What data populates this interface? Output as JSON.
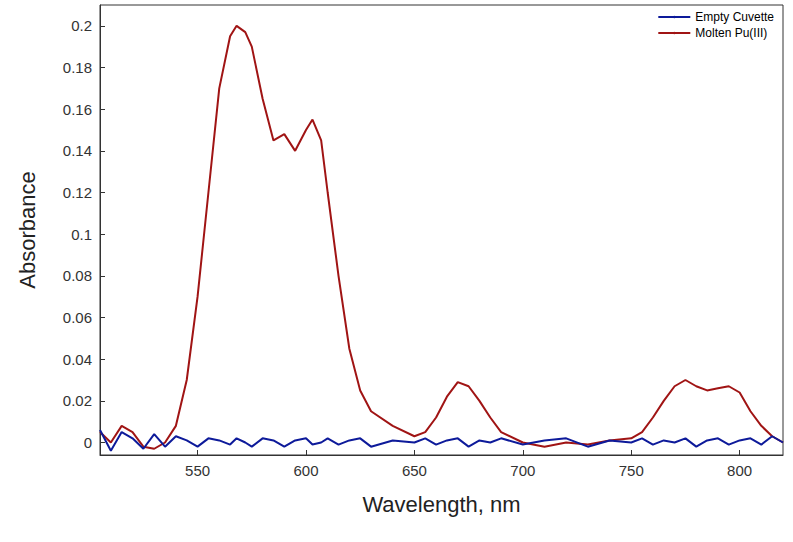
{
  "chart_data": {
    "type": "line",
    "x_label": "Wavelength, nm",
    "y_label": "Absorbance",
    "xlim": [
      505,
      820
    ],
    "xticks": [
      550,
      600,
      650,
      700,
      750,
      800
    ],
    "ylim": [
      -0.006,
      0.21
    ],
    "yticks": [
      0,
      0.02,
      0.04,
      0.06,
      0.08,
      0.1,
      0.12,
      0.14,
      0.16,
      0.18,
      0.2
    ],
    "grid": false,
    "legend": "upper right",
    "x": [
      505,
      510,
      515,
      520,
      525,
      530,
      535,
      540,
      545,
      550,
      555,
      560,
      565,
      568,
      572,
      575,
      580,
      585,
      590,
      595,
      600,
      603,
      607,
      610,
      615,
      620,
      625,
      630,
      640,
      650,
      655,
      660,
      665,
      670,
      675,
      680,
      685,
      690,
      700,
      710,
      720,
      730,
      740,
      750,
      755,
      760,
      765,
      770,
      775,
      780,
      785,
      790,
      795,
      800,
      805,
      810,
      815,
      820
    ],
    "series": [
      {
        "name": "Empty Cuvette",
        "color": "#0d1a9a",
        "values": [
          0.006,
          -0.004,
          0.005,
          0.002,
          -0.003,
          0.004,
          -0.002,
          0.003,
          0.001,
          -0.002,
          0.002,
          0.001,
          -0.001,
          0.002,
          0.0,
          -0.002,
          0.002,
          0.001,
          -0.002,
          0.001,
          0.002,
          -0.001,
          0.0,
          0.002,
          -0.001,
          0.001,
          0.002,
          -0.002,
          0.001,
          0.0,
          0.002,
          -0.001,
          0.001,
          0.002,
          -0.002,
          0.001,
          0.0,
          0.002,
          -0.001,
          0.001,
          0.002,
          -0.002,
          0.001,
          0.0,
          0.002,
          -0.001,
          0.001,
          0.0,
          0.002,
          -0.002,
          0.001,
          0.002,
          -0.001,
          0.001,
          0.002,
          -0.001,
          0.003,
          0.0
        ]
      },
      {
        "name": "Molten Pu(III)",
        "color": "#a01414",
        "values": [
          0.005,
          0,
          0.008,
          0.005,
          -0.002,
          -0.003,
          0,
          0.008,
          0.03,
          0.07,
          0.12,
          0.17,
          0.195,
          0.2,
          0.197,
          0.19,
          0.165,
          0.145,
          0.148,
          0.14,
          0.15,
          0.155,
          0.145,
          0.12,
          0.08,
          0.045,
          0.025,
          0.015,
          0.008,
          0.003,
          0.005,
          0.012,
          0.022,
          0.029,
          0.027,
          0.02,
          0.012,
          0.005,
          0,
          -0.002,
          0,
          -0.001,
          0.001,
          0.002,
          0.005,
          0.012,
          0.02,
          0.027,
          0.03,
          0.027,
          0.025,
          0.026,
          0.027,
          0.024,
          0.015,
          0.008,
          0.003,
          0
        ]
      }
    ]
  }
}
